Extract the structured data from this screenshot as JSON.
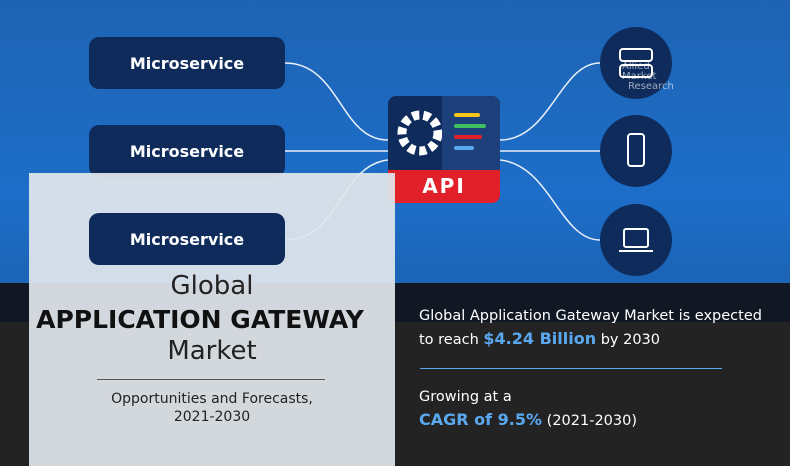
{
  "diagram": {
    "microservices": [
      "Microservice",
      "Microservice",
      "Microservice"
    ],
    "api_label": "API",
    "clients": [
      "server-icon",
      "mobile-phone-icon",
      "laptop-icon"
    ],
    "watermark": [
      "Allied",
      "Market",
      "Research"
    ]
  },
  "title": {
    "line1": "Global",
    "line2": "APPLICATION GATEWAY",
    "line3": "Market",
    "subtitle1": "Opportunities and Forecasts,",
    "subtitle2": "2021-2030"
  },
  "stats": {
    "line1": "Global Application Gateway Market is expected",
    "line2_pre": "to reach ",
    "value": "$4.24 Billion",
    "line2_post": " by 2030",
    "growing": "Growing at a",
    "cagr_label": "CAGR of ",
    "cagr_value": "9.5%",
    "cagr_period": "(2021-2030)"
  },
  "colors": {
    "accent": "#5aa9f0",
    "api_red": "#e2202a",
    "navy": "#0e2b5c",
    "blue_bg": "#1d6ec9"
  }
}
